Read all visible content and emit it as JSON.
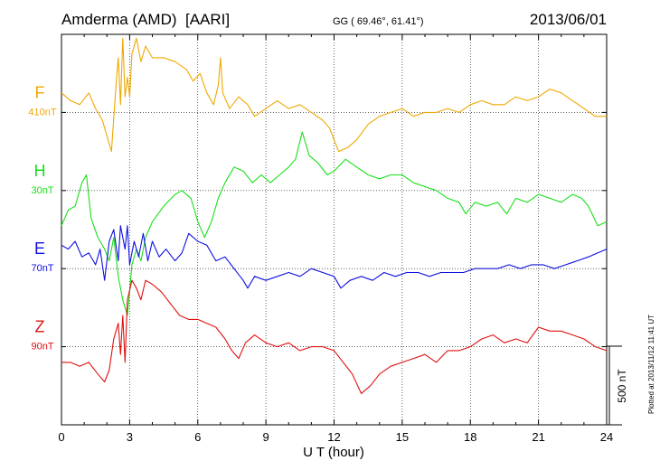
{
  "chart_data": {
    "type": "line",
    "station": "Amderma (AMD)",
    "network": "[AARI]",
    "coords_text": "GG ( 69.46°,  61.41°)",
    "date": "2013/06/01",
    "xlabel": "U T (hour)",
    "xlim": [
      0,
      24
    ],
    "x_ticks": [
      0,
      3,
      6,
      9,
      12,
      15,
      18,
      21,
      24
    ],
    "x_tick_labels": [
      "0",
      "3",
      "6",
      "9",
      "12",
      "15",
      "18",
      "21",
      "24"
    ],
    "grid": true,
    "scale_bar_label": "500 nT",
    "plotted_note": "Plotted at 2013/11/12 11:41 UT",
    "series": [
      {
        "name": "F",
        "baseline_label": "410nT",
        "color": "#f0a800",
        "baseline_row": 1,
        "points": [
          [
            0.0,
            0.25
          ],
          [
            0.4,
            0.15
          ],
          [
            0.8,
            0.1
          ],
          [
            1.2,
            0.25
          ],
          [
            1.5,
            0.05
          ],
          [
            1.8,
            -0.1
          ],
          [
            2.0,
            -0.3
          ],
          [
            2.2,
            -0.5
          ],
          [
            2.4,
            0.35
          ],
          [
            2.5,
            0.7
          ],
          [
            2.6,
            0.1
          ],
          [
            2.7,
            0.95
          ],
          [
            2.8,
            0.2
          ],
          [
            2.9,
            0.45
          ],
          [
            3.0,
            0.2
          ],
          [
            3.1,
            0.75
          ],
          [
            3.3,
            0.95
          ],
          [
            3.5,
            0.65
          ],
          [
            3.7,
            0.85
          ],
          [
            4.0,
            0.7
          ],
          [
            4.5,
            0.7
          ],
          [
            5.0,
            0.65
          ],
          [
            5.5,
            0.55
          ],
          [
            5.8,
            0.4
          ],
          [
            6.1,
            0.5
          ],
          [
            6.4,
            0.25
          ],
          [
            6.7,
            0.1
          ],
          [
            6.9,
            0.35
          ],
          [
            7.0,
            0.7
          ],
          [
            7.1,
            0.25
          ],
          [
            7.4,
            0.05
          ],
          [
            7.8,
            0.2
          ],
          [
            8.2,
            0.1
          ],
          [
            8.5,
            -0.05
          ],
          [
            9.0,
            0.05
          ],
          [
            9.5,
            0.15
          ],
          [
            10.0,
            0.05
          ],
          [
            10.5,
            0.1
          ],
          [
            11.0,
            0.0
          ],
          [
            11.5,
            -0.1
          ],
          [
            11.8,
            -0.2
          ],
          [
            12.2,
            -0.5
          ],
          [
            12.6,
            -0.45
          ],
          [
            13.0,
            -0.35
          ],
          [
            13.5,
            -0.15
          ],
          [
            14.0,
            -0.05
          ],
          [
            14.5,
            0.0
          ],
          [
            15.0,
            0.05
          ],
          [
            15.5,
            -0.05
          ],
          [
            16.0,
            0.0
          ],
          [
            16.5,
            0.0
          ],
          [
            17.0,
            0.05
          ],
          [
            17.5,
            0.0
          ],
          [
            18.0,
            0.1
          ],
          [
            18.5,
            0.15
          ],
          [
            19.0,
            0.1
          ],
          [
            19.5,
            0.1
          ],
          [
            20.0,
            0.2
          ],
          [
            20.5,
            0.15
          ],
          [
            21.0,
            0.2
          ],
          [
            21.5,
            0.3
          ],
          [
            22.0,
            0.25
          ],
          [
            22.5,
            0.15
          ],
          [
            23.0,
            0.05
          ],
          [
            23.5,
            -0.05
          ],
          [
            24.0,
            -0.05
          ]
        ]
      },
      {
        "name": "H",
        "baseline_label": "30nT",
        "color": "#18e018",
        "baseline_row": 2,
        "points": [
          [
            0.0,
            -0.45
          ],
          [
            0.3,
            -0.25
          ],
          [
            0.6,
            -0.2
          ],
          [
            0.9,
            0.1
          ],
          [
            1.1,
            0.2
          ],
          [
            1.3,
            -0.35
          ],
          [
            1.6,
            -0.6
          ],
          [
            1.9,
            -0.75
          ],
          [
            2.1,
            -0.9
          ],
          [
            2.3,
            -0.6
          ],
          [
            2.5,
            -1.1
          ],
          [
            2.7,
            -1.4
          ],
          [
            2.9,
            -1.6
          ],
          [
            3.0,
            -1.3
          ],
          [
            3.1,
            -0.95
          ],
          [
            3.3,
            -0.75
          ],
          [
            3.5,
            -0.9
          ],
          [
            3.7,
            -0.6
          ],
          [
            4.0,
            -0.4
          ],
          [
            4.5,
            -0.2
          ],
          [
            5.0,
            -0.05
          ],
          [
            5.3,
            0.0
          ],
          [
            5.7,
            -0.1
          ],
          [
            6.0,
            -0.4
          ],
          [
            6.3,
            -0.6
          ],
          [
            6.6,
            -0.4
          ],
          [
            6.9,
            -0.1
          ],
          [
            7.2,
            0.1
          ],
          [
            7.6,
            0.3
          ],
          [
            8.0,
            0.25
          ],
          [
            8.4,
            0.1
          ],
          [
            8.8,
            0.2
          ],
          [
            9.2,
            0.1
          ],
          [
            9.6,
            0.2
          ],
          [
            10.0,
            0.3
          ],
          [
            10.3,
            0.4
          ],
          [
            10.6,
            0.75
          ],
          [
            10.9,
            0.45
          ],
          [
            11.3,
            0.35
          ],
          [
            11.7,
            0.2
          ],
          [
            12.0,
            0.25
          ],
          [
            12.5,
            0.4
          ],
          [
            13.0,
            0.3
          ],
          [
            13.5,
            0.2
          ],
          [
            14.0,
            0.15
          ],
          [
            14.5,
            0.2
          ],
          [
            15.0,
            0.2
          ],
          [
            15.5,
            0.1
          ],
          [
            16.0,
            0.05
          ],
          [
            16.5,
            0.0
          ],
          [
            17.0,
            -0.1
          ],
          [
            17.5,
            -0.15
          ],
          [
            17.8,
            -0.3
          ],
          [
            18.2,
            -0.15
          ],
          [
            18.7,
            -0.2
          ],
          [
            19.2,
            -0.15
          ],
          [
            19.6,
            -0.3
          ],
          [
            20.0,
            -0.1
          ],
          [
            20.5,
            -0.15
          ],
          [
            21.0,
            -0.05
          ],
          [
            21.5,
            -0.1
          ],
          [
            22.0,
            -0.15
          ],
          [
            22.5,
            -0.05
          ],
          [
            22.9,
            -0.1
          ],
          [
            23.2,
            -0.2
          ],
          [
            23.6,
            -0.45
          ],
          [
            24.0,
            -0.4
          ]
        ]
      },
      {
        "name": "E",
        "baseline_label": "70nT",
        "color": "#1010e0",
        "baseline_row": 3,
        "points": [
          [
            0.0,
            0.3
          ],
          [
            0.3,
            0.25
          ],
          [
            0.6,
            0.35
          ],
          [
            0.9,
            0.15
          ],
          [
            1.2,
            0.2
          ],
          [
            1.5,
            0.05
          ],
          [
            1.7,
            0.25
          ],
          [
            1.9,
            -0.15
          ],
          [
            2.1,
            0.35
          ],
          [
            2.3,
            0.5
          ],
          [
            2.5,
            0.1
          ],
          [
            2.6,
            0.55
          ],
          [
            2.8,
            0.25
          ],
          [
            2.9,
            0.55
          ],
          [
            3.0,
            0.05
          ],
          [
            3.2,
            0.35
          ],
          [
            3.4,
            0.15
          ],
          [
            3.6,
            0.45
          ],
          [
            3.8,
            0.1
          ],
          [
            4.0,
            0.35
          ],
          [
            4.3,
            0.15
          ],
          [
            4.6,
            0.25
          ],
          [
            5.0,
            0.1
          ],
          [
            5.3,
            0.2
          ],
          [
            5.6,
            0.45
          ],
          [
            6.0,
            0.35
          ],
          [
            6.4,
            0.3
          ],
          [
            6.8,
            0.1
          ],
          [
            7.2,
            0.15
          ],
          [
            7.6,
            0.0
          ],
          [
            8.0,
            -0.15
          ],
          [
            8.2,
            -0.25
          ],
          [
            8.5,
            -0.1
          ],
          [
            9.0,
            -0.15
          ],
          [
            9.5,
            -0.1
          ],
          [
            10.0,
            -0.05
          ],
          [
            10.5,
            -0.1
          ],
          [
            11.0,
            0.0
          ],
          [
            11.5,
            -0.05
          ],
          [
            12.0,
            -0.1
          ],
          [
            12.3,
            -0.25
          ],
          [
            12.7,
            -0.15
          ],
          [
            13.2,
            -0.1
          ],
          [
            13.7,
            -0.15
          ],
          [
            14.2,
            -0.05
          ],
          [
            14.7,
            -0.1
          ],
          [
            15.2,
            -0.05
          ],
          [
            15.7,
            -0.05
          ],
          [
            16.2,
            -0.1
          ],
          [
            16.7,
            -0.05
          ],
          [
            17.2,
            -0.05
          ],
          [
            17.7,
            -0.05
          ],
          [
            18.2,
            0.0
          ],
          [
            18.7,
            0.0
          ],
          [
            19.2,
            0.0
          ],
          [
            19.7,
            0.05
          ],
          [
            20.2,
            0.0
          ],
          [
            20.7,
            0.05
          ],
          [
            21.2,
            0.05
          ],
          [
            21.7,
            0.0
          ],
          [
            22.2,
            0.05
          ],
          [
            22.7,
            0.1
          ],
          [
            23.2,
            0.15
          ],
          [
            23.6,
            0.2
          ],
          [
            24.0,
            0.25
          ]
        ]
      },
      {
        "name": "Z",
        "baseline_label": "90nT",
        "color": "#e01010",
        "baseline_row": 4,
        "points": [
          [
            0.0,
            -0.2
          ],
          [
            0.4,
            -0.2
          ],
          [
            0.8,
            -0.25
          ],
          [
            1.2,
            -0.2
          ],
          [
            1.6,
            -0.35
          ],
          [
            1.9,
            -0.45
          ],
          [
            2.1,
            -0.3
          ],
          [
            2.3,
            0.1
          ],
          [
            2.5,
            0.3
          ],
          [
            2.6,
            -0.1
          ],
          [
            2.7,
            0.4
          ],
          [
            2.8,
            -0.2
          ],
          [
            2.9,
            0.6
          ],
          [
            3.1,
            0.85
          ],
          [
            3.3,
            0.75
          ],
          [
            3.5,
            0.6
          ],
          [
            3.7,
            0.85
          ],
          [
            4.0,
            0.8
          ],
          [
            4.4,
            0.7
          ],
          [
            4.8,
            0.55
          ],
          [
            5.2,
            0.4
          ],
          [
            5.6,
            0.35
          ],
          [
            6.0,
            0.35
          ],
          [
            6.4,
            0.3
          ],
          [
            6.8,
            0.25
          ],
          [
            7.2,
            0.1
          ],
          [
            7.5,
            -0.05
          ],
          [
            7.8,
            -0.15
          ],
          [
            8.1,
            0.05
          ],
          [
            8.5,
            0.15
          ],
          [
            9.0,
            0.05
          ],
          [
            9.5,
            0.0
          ],
          [
            10.0,
            0.05
          ],
          [
            10.5,
            -0.05
          ],
          [
            11.0,
            0.0
          ],
          [
            11.5,
            0.0
          ],
          [
            12.0,
            -0.05
          ],
          [
            12.4,
            -0.2
          ],
          [
            12.8,
            -0.35
          ],
          [
            13.2,
            -0.6
          ],
          [
            13.6,
            -0.5
          ],
          [
            14.0,
            -0.35
          ],
          [
            14.5,
            -0.25
          ],
          [
            15.0,
            -0.2
          ],
          [
            15.5,
            -0.15
          ],
          [
            16.0,
            -0.1
          ],
          [
            16.5,
            -0.2
          ],
          [
            17.0,
            -0.05
          ],
          [
            17.5,
            -0.05
          ],
          [
            18.0,
            0.0
          ],
          [
            18.5,
            0.1
          ],
          [
            19.0,
            0.15
          ],
          [
            19.5,
            0.05
          ],
          [
            20.0,
            0.1
          ],
          [
            20.5,
            0.05
          ],
          [
            21.0,
            0.25
          ],
          [
            21.5,
            0.2
          ],
          [
            22.0,
            0.2
          ],
          [
            22.5,
            0.15
          ],
          [
            23.0,
            0.1
          ],
          [
            23.5,
            0.0
          ],
          [
            24.0,
            -0.05
          ]
        ]
      }
    ]
  }
}
